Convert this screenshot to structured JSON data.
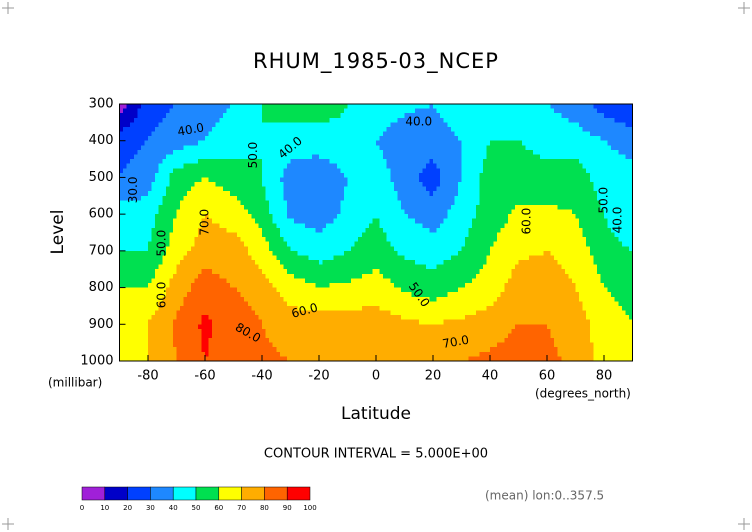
{
  "chart_data": {
    "type": "contour",
    "title": "RHUM_1985-03_NCEP",
    "x_label": "Latitude",
    "y_label": "Level",
    "x_unit_label": "(degrees_north)",
    "y_unit_label": "(millibar)",
    "x": [
      -90,
      -80,
      -70,
      -60,
      -50,
      -40,
      -30,
      -20,
      -10,
      0,
      10,
      20,
      30,
      40,
      50,
      60,
      70,
      80,
      90
    ],
    "y": [
      300,
      400,
      500,
      600,
      700,
      800,
      900,
      1000
    ],
    "z": [
      [
        5,
        25,
        30,
        35,
        40,
        50,
        55,
        55,
        50,
        45,
        42,
        40,
        45,
        50,
        45,
        40,
        35,
        25,
        20
      ],
      [
        25,
        30,
        35,
        40,
        45,
        50,
        45,
        45,
        48,
        40,
        35,
        35,
        40,
        50,
        50,
        45,
        45,
        40,
        35
      ],
      [
        30,
        35,
        55,
        60,
        55,
        50,
        35,
        33,
        40,
        45,
        35,
        25,
        40,
        55,
        55,
        55,
        55,
        45,
        45
      ],
      [
        45,
        45,
        60,
        70,
        65,
        55,
        38,
        35,
        42,
        50,
        40,
        35,
        45,
        55,
        62,
        62,
        60,
        50,
        40
      ],
      [
        50,
        50,
        65,
        75,
        75,
        65,
        50,
        45,
        50,
        55,
        48,
        45,
        50,
        60,
        68,
        70,
        65,
        55,
        50
      ],
      [
        60,
        60,
        75,
        85,
        80,
        75,
        65,
        60,
        62,
        65,
        58,
        55,
        60,
        65,
        75,
        75,
        70,
        60,
        55
      ],
      [
        65,
        70,
        82,
        92,
        85,
        80,
        75,
        75,
        75,
        75,
        72,
        70,
        72,
        75,
        80,
        80,
        75,
        65,
        60
      ],
      [
        65,
        70,
        80,
        90,
        85,
        82,
        80,
        80,
        80,
        80,
        78,
        78,
        80,
        82,
        85,
        82,
        78,
        65,
        60
      ]
    ],
    "xlim": [
      -90,
      90
    ],
    "ylim": [
      300,
      1000
    ],
    "y_inverted": true,
    "xticks": [
      -80,
      -60,
      -40,
      -20,
      0,
      20,
      40,
      60,
      80
    ],
    "yticks": [
      300,
      400,
      500,
      600,
      700,
      800,
      900,
      1000
    ],
    "levels": [
      0,
      10,
      20,
      30,
      40,
      50,
      60,
      70,
      80,
      90,
      100
    ],
    "colors": [
      "#a020d8",
      "#0000c8",
      "#0040ff",
      "#1e88ff",
      "#00ffff",
      "#00e050",
      "#ffff00",
      "#ffad00",
      "#ff6400",
      "#ff0000"
    ],
    "contour_labels": [
      {
        "label": "40.0",
        "x": -65,
        "y": 371
      },
      {
        "label": "50.0",
        "x": -43,
        "y": 439
      },
      {
        "label": "40.0",
        "x": -30,
        "y": 420
      },
      {
        "label": "40.0",
        "x": 15,
        "y": 349
      },
      {
        "label": "30.0",
        "x": -85,
        "y": 534
      },
      {
        "label": "50.0",
        "x": -75,
        "y": 679
      },
      {
        "label": "60.0",
        "x": -75,
        "y": 820
      },
      {
        "label": "70.0",
        "x": -60,
        "y": 622
      },
      {
        "label": "80.0",
        "x": -45,
        "y": 924
      },
      {
        "label": "60.0",
        "x": -25,
        "y": 864
      },
      {
        "label": "50.0",
        "x": 15,
        "y": 820
      },
      {
        "label": "70.0",
        "x": 28,
        "y": 949
      },
      {
        "label": "60.0",
        "x": 53,
        "y": 619
      },
      {
        "label": "50.0",
        "x": 80,
        "y": 562
      },
      {
        "label": "40.0",
        "x": 85,
        "y": 616
      }
    ],
    "annotation": "CONTOUR INTERVAL = 5.000E+00",
    "footnote": "(mean) lon:0..357.5"
  }
}
